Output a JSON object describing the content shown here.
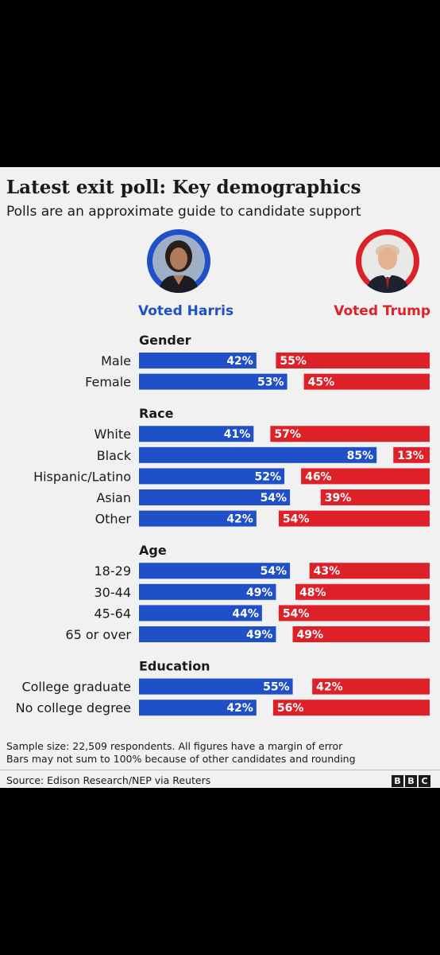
{
  "title": "Latest exit poll: Key demographics",
  "subtitle": "Polls are an approximate guide to candidate support",
  "candidates": {
    "harris": {
      "label": "Voted Harris",
      "color": "#1f50c8"
    },
    "trump": {
      "label": "Voted Trump",
      "color": "#de2128"
    }
  },
  "chart_data": {
    "type": "bar",
    "orientation": "diverging-horizontal",
    "series": [
      {
        "name": "Voted Harris",
        "color": "#1f50c8"
      },
      {
        "name": "Voted Trump",
        "color": "#de2128"
      }
    ],
    "groups": [
      {
        "name": "Gender",
        "rows": [
          {
            "label": "Male",
            "harris": 42,
            "trump": 55
          },
          {
            "label": "Female",
            "harris": 53,
            "trump": 45
          }
        ]
      },
      {
        "name": "Race",
        "rows": [
          {
            "label": "White",
            "harris": 41,
            "trump": 57
          },
          {
            "label": "Black",
            "harris": 85,
            "trump": 13
          },
          {
            "label": "Hispanic/Latino",
            "harris": 52,
            "trump": 46
          },
          {
            "label": "Asian",
            "harris": 54,
            "trump": 39
          },
          {
            "label": "Other",
            "harris": 42,
            "trump": 54
          }
        ]
      },
      {
        "name": "Age",
        "rows": [
          {
            "label": "18-29",
            "harris": 54,
            "trump": 43
          },
          {
            "label": "30-44",
            "harris": 49,
            "trump": 48
          },
          {
            "label": "45-64",
            "harris": 44,
            "trump": 54
          },
          {
            "label": "65 or over",
            "harris": 49,
            "trump": 49
          }
        ]
      },
      {
        "name": "Education",
        "rows": [
          {
            "label": "College graduate",
            "harris": 55,
            "trump": 42
          },
          {
            "label": "No college degree",
            "harris": 42,
            "trump": 56
          }
        ]
      }
    ],
    "value_suffix": "%"
  },
  "footnotes": {
    "sample": "Sample size: 22,509 respondents. All figures have a margin of error",
    "rounding": "Bars may not sum to 100% because of other candidates and rounding",
    "source": "Source: Edison Research/NEP via Reuters"
  },
  "logo": [
    "B",
    "B",
    "C"
  ]
}
